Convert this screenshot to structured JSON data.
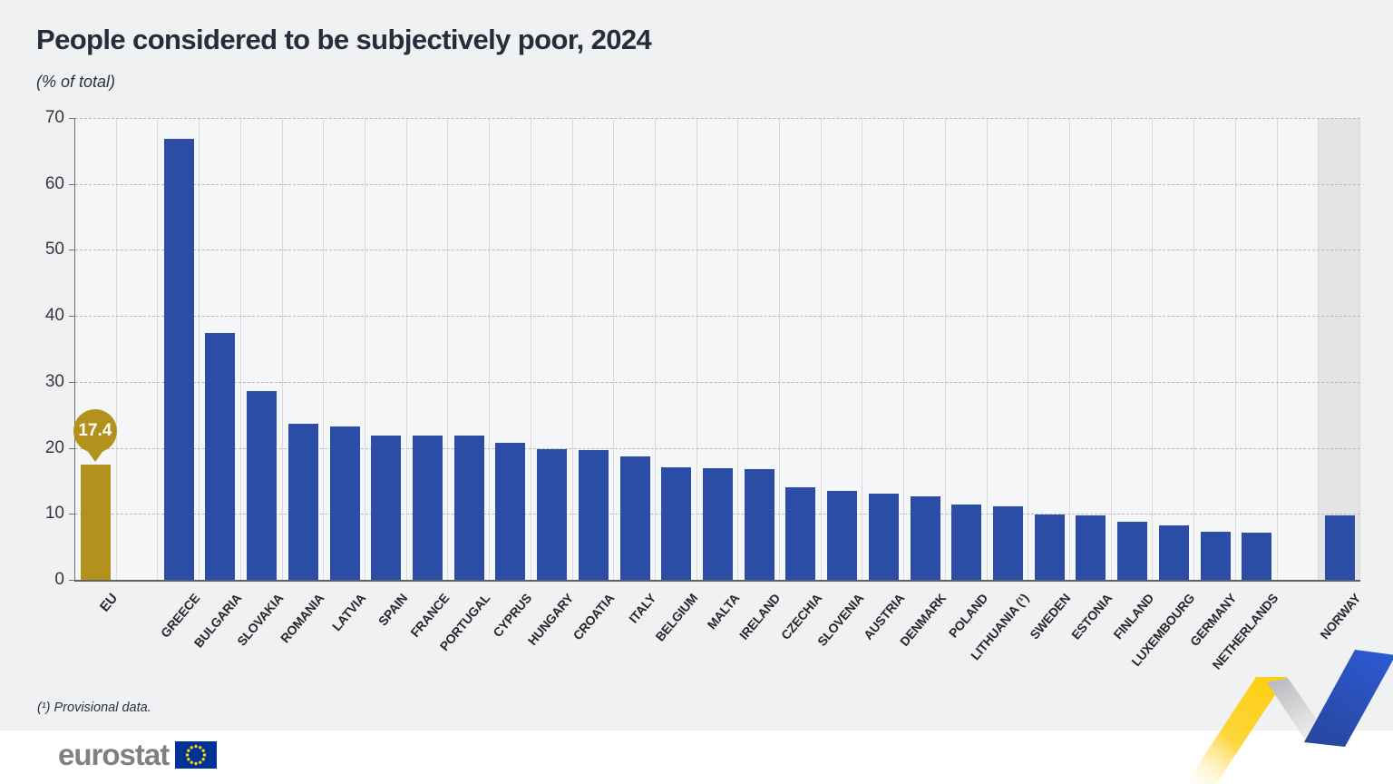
{
  "header": {
    "title": "People considered to be subjectively poor, 2024",
    "subtitle": "(% of total)"
  },
  "chart_data": {
    "type": "bar",
    "title": "People considered to be subjectively poor, 2024",
    "ylabel": "% of total",
    "ylim": [
      0,
      70
    ],
    "yticks": [
      0,
      10,
      20,
      30,
      40,
      50,
      60,
      70
    ],
    "grid": "horizontal-dashed-with-vertical-column-separators",
    "legend": "none",
    "categories": [
      "EU",
      "GREECE",
      "BULGARIA",
      "SLOVAKIA",
      "ROMANIA",
      "LATVIA",
      "SPAIN",
      "FRANCE",
      "PORTUGAL",
      "CYPRUS",
      "HUNGARY",
      "CROATIA",
      "ITALY",
      "BELGIUM",
      "MALTA",
      "IRELAND",
      "CZECHIA",
      "SLOVENIA",
      "AUSTRIA",
      "DENMARK",
      "POLAND",
      "LITHUANIA (¹)",
      "SWEDEN",
      "ESTONIA",
      "FINLAND",
      "LUXEMBOURG",
      "GERMANY",
      "NETHERLANDS",
      "NORWAY"
    ],
    "values": [
      17.4,
      66.8,
      37.4,
      28.6,
      23.7,
      23.3,
      21.9,
      21.8,
      21.8,
      20.8,
      19.8,
      19.7,
      18.7,
      17.0,
      16.9,
      16.8,
      14.0,
      13.5,
      13.1,
      12.6,
      11.4,
      11.2,
      9.9,
      9.8,
      8.8,
      8.3,
      7.3,
      7.2,
      9.7
    ],
    "bars": [
      {
        "label": "EU",
        "value": 17.4,
        "role": "eu",
        "gap_before": false
      },
      {
        "label": "GREECE",
        "value": 66.8,
        "role": "country",
        "gap_before": true
      },
      {
        "label": "BULGARIA",
        "value": 37.4,
        "role": "country",
        "gap_before": false
      },
      {
        "label": "SLOVAKIA",
        "value": 28.6,
        "role": "country",
        "gap_before": false
      },
      {
        "label": "ROMANIA",
        "value": 23.7,
        "role": "country",
        "gap_before": false
      },
      {
        "label": "LATVIA",
        "value": 23.3,
        "role": "country",
        "gap_before": false
      },
      {
        "label": "SPAIN",
        "value": 21.9,
        "role": "country",
        "gap_before": false
      },
      {
        "label": "FRANCE",
        "value": 21.8,
        "role": "country",
        "gap_before": false
      },
      {
        "label": "PORTUGAL",
        "value": 21.8,
        "role": "country",
        "gap_before": false
      },
      {
        "label": "CYPRUS",
        "value": 20.8,
        "role": "country",
        "gap_before": false
      },
      {
        "label": "HUNGARY",
        "value": 19.8,
        "role": "country",
        "gap_before": false
      },
      {
        "label": "CROATIA",
        "value": 19.7,
        "role": "country",
        "gap_before": false
      },
      {
        "label": "ITALY",
        "value": 18.7,
        "role": "country",
        "gap_before": false
      },
      {
        "label": "BELGIUM",
        "value": 17.0,
        "role": "country",
        "gap_before": false
      },
      {
        "label": "MALTA",
        "value": 16.9,
        "role": "country",
        "gap_before": false
      },
      {
        "label": "IRELAND",
        "value": 16.8,
        "role": "country",
        "gap_before": false
      },
      {
        "label": "CZECHIA",
        "value": 14.0,
        "role": "country",
        "gap_before": false
      },
      {
        "label": "SLOVENIA",
        "value": 13.5,
        "role": "country",
        "gap_before": false
      },
      {
        "label": "AUSTRIA",
        "value": 13.1,
        "role": "country",
        "gap_before": false
      },
      {
        "label": "DENMARK",
        "value": 12.6,
        "role": "country",
        "gap_before": false
      },
      {
        "label": "POLAND",
        "value": 11.4,
        "role": "country",
        "gap_before": false
      },
      {
        "label": "LITHUANIA (¹)",
        "value": 11.2,
        "role": "country",
        "gap_before": false
      },
      {
        "label": "SWEDEN",
        "value": 9.9,
        "role": "country",
        "gap_before": false
      },
      {
        "label": "ESTONIA",
        "value": 9.8,
        "role": "country",
        "gap_before": false
      },
      {
        "label": "FINLAND",
        "value": 8.8,
        "role": "country",
        "gap_before": false
      },
      {
        "label": "LUXEMBOURG",
        "value": 8.3,
        "role": "country",
        "gap_before": false
      },
      {
        "label": "GERMANY",
        "value": 7.3,
        "role": "country",
        "gap_before": false
      },
      {
        "label": "NETHERLANDS",
        "value": 7.2,
        "role": "country",
        "gap_before": false
      },
      {
        "label": "NORWAY",
        "value": 9.7,
        "role": "non-eu-highlight-band",
        "gap_before": true
      }
    ],
    "annotations": [
      {
        "target": "EU",
        "text": "17.4",
        "style": "gold-circle-callout"
      }
    ],
    "colors": {
      "bar_blue": "#2b4da6",
      "eu_gold": "#b2921d",
      "norway_band": "#e3e4e6",
      "plot_background": "#f5f6f7",
      "page_background": "#f0f1f3",
      "gridline": "#b5b7ba",
      "column_separator": "#d9dadc"
    }
  },
  "callout": {
    "value_label": "17.4"
  },
  "footnote": {
    "text": "(¹) Provisional data."
  },
  "footer": {
    "logo_text": "eurostat",
    "flag_icon": "eu-flag-icon",
    "flag_blue": "#003399",
    "flag_star_yellow": "#ffcc00"
  },
  "decoration": {
    "ribbon_yellow": "#fdcf12",
    "ribbon_gray": "#c9cacd",
    "ribbon_blue": "#2c53c8"
  }
}
